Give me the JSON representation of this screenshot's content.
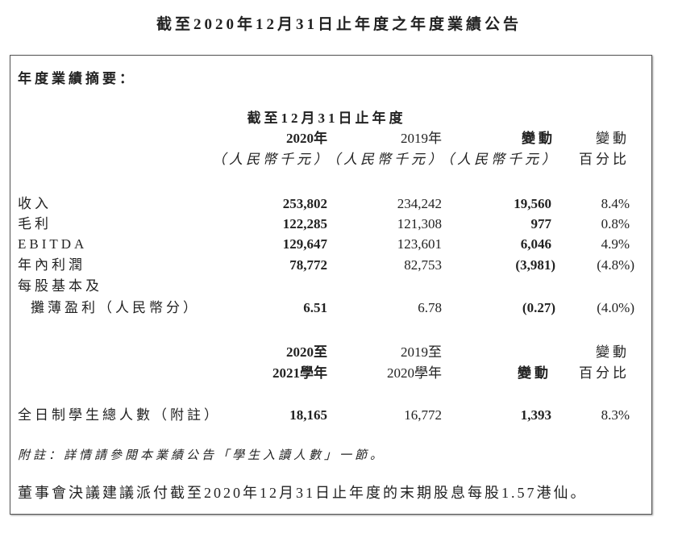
{
  "title": "截至2020年12月31日止年度之年度業績公告",
  "summary_heading": "年度業績摘要：",
  "table1": {
    "period_header": "截至12月31日止年度",
    "col_headers": [
      {
        "line1": "2020年",
        "line2": "（人民幣千元）"
      },
      {
        "line1": "2019年",
        "line2": "（人民幣千元）"
      },
      {
        "line1": "變動",
        "line2": "（人民幣千元）"
      },
      {
        "line1": "變動",
        "line2": "百分比"
      }
    ],
    "rows": [
      {
        "label": "收入",
        "v2020": "253,802",
        "v2019": "234,242",
        "change": "19,560",
        "pct": "8.4%"
      },
      {
        "label": "毛利",
        "v2020": "122,285",
        "v2019": "121,308",
        "change": "977",
        "pct": "0.8%"
      },
      {
        "label": "EBITDA",
        "v2020": "129,647",
        "v2019": "123,601",
        "change": "6,046",
        "pct": "4.9%"
      },
      {
        "label": "年內利潤",
        "v2020": "78,772",
        "v2019": "82,753",
        "change": "(3,981)",
        "pct": "(4.8%)"
      },
      {
        "label": "每股基本及",
        "label2": "攤薄盈利（人民幣分）",
        "v2020": "6.51",
        "v2019": "6.78",
        "change": "(0.27)",
        "pct": "(4.0%)"
      }
    ]
  },
  "table2": {
    "col_headers": [
      {
        "line1": "2020至",
        "line2": "2021學年"
      },
      {
        "line1": "2019至",
        "line2": "2020學年"
      },
      {
        "line1": "",
        "line2": "變動"
      },
      {
        "line1": "變動",
        "line2": "百分比"
      }
    ],
    "row": {
      "label": "全日制學生總人數（附註）",
      "v1": "18,165",
      "v2": "16,772",
      "change": "1,393",
      "pct": "8.3%"
    }
  },
  "note": "附註：詳情請參閱本業績公告「學生入讀人數」一節。",
  "dividend": "董事會決議建議派付截至2020年12月31日止年度的末期股息每股1.57港仙。"
}
